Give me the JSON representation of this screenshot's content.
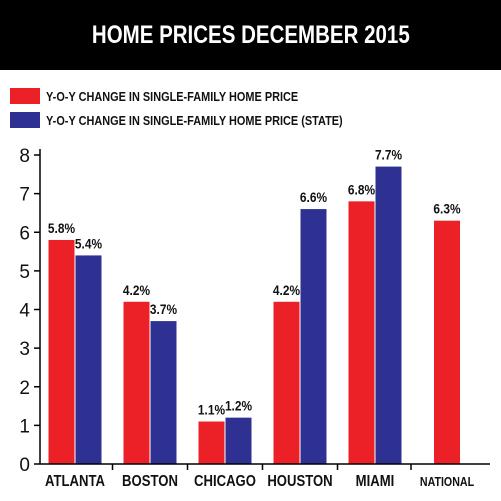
{
  "title": "HOME PRICES DECEMBER 2015",
  "colors": {
    "series1": "#ec2127",
    "series2": "#2e3192",
    "axis": "#000000",
    "background": "#ffffff"
  },
  "legend": [
    {
      "label": "Y-O-Y CHANGE IN SINGLE-FAMILY HOME PRICE",
      "color": "#ec2127"
    },
    {
      "label": "Y-O-Y CHANGE IN SINGLE-FAMILY HOME PRICE (STATE)",
      "color": "#2e3192"
    }
  ],
  "chart_data": {
    "type": "bar",
    "title": "HOME PRICES DECEMBER 2015",
    "xlabel": "",
    "ylabel": "",
    "categories": [
      "ATLANTA",
      "BOSTON",
      "CHICAGO",
      "HOUSTON",
      "MIAMI",
      "NATIONAL"
    ],
    "series": [
      {
        "name": "Y-O-Y CHANGE IN SINGLE-FAMILY HOME PRICE",
        "color": "#ec2127",
        "values": [
          5.8,
          4.2,
          1.1,
          4.2,
          6.8,
          6.3
        ],
        "labels": [
          "5.8%",
          "4.2%",
          "1.1%",
          "4.2%",
          "6.8%",
          "6.3%"
        ]
      },
      {
        "name": "Y-O-Y CHANGE IN SINGLE-FAMILY HOME PRICE (STATE)",
        "color": "#2e3192",
        "values": [
          5.4,
          3.7,
          1.2,
          6.6,
          7.7,
          null
        ],
        "labels": [
          "5.4%",
          "3.7%",
          "1.2%",
          "6.6%",
          "7.7%",
          null
        ]
      }
    ],
    "ylim": [
      0,
      8
    ],
    "yticks": [
      0,
      1,
      2,
      3,
      4,
      5,
      6,
      7,
      8
    ],
    "grid": false,
    "legend_position": "top-left"
  }
}
